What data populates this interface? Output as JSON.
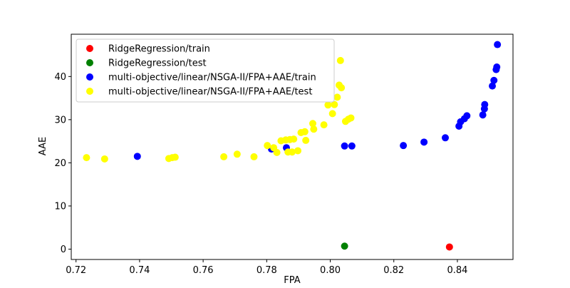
{
  "chart_data": {
    "type": "scatter",
    "title": "",
    "xlabel": "FPA",
    "ylabel": "AAE",
    "xlim": [
      0.7185,
      0.8575
    ],
    "ylim": [
      -2.4,
      49.8
    ],
    "xticks": [
      "0.72",
      "0.74",
      "0.76",
      "0.78",
      "0.80",
      "0.82",
      "0.84"
    ],
    "xtick_values": [
      0.72,
      0.74,
      0.76,
      0.78,
      0.8,
      0.82,
      0.84
    ],
    "yticks": [
      "0",
      "10",
      "20",
      "30",
      "40"
    ],
    "ytick_values": [
      0,
      10,
      20,
      30,
      40
    ],
    "grid": false,
    "legend_position": "upper-left",
    "series": [
      {
        "name": "RidgeRegression/train",
        "color": "#ff0000",
        "points": [
          [
            0.8375,
            0.5
          ]
        ]
      },
      {
        "name": "RidgeRegression/test",
        "color": "#008000",
        "points": [
          [
            0.8045,
            0.7
          ]
        ]
      },
      {
        "name": "multi-objective/linear/NSGA-II/FPA+AAE/train",
        "color": "#0000ff",
        "points": [
          [
            0.7393,
            21.5
          ],
          [
            0.7815,
            23.2
          ],
          [
            0.7862,
            23.5
          ],
          [
            0.8045,
            23.9
          ],
          [
            0.8068,
            23.9
          ],
          [
            0.823,
            24.0
          ],
          [
            0.8295,
            24.8
          ],
          [
            0.8362,
            25.8
          ],
          [
            0.8405,
            28.5
          ],
          [
            0.841,
            29.5
          ],
          [
            0.8422,
            30.2
          ],
          [
            0.843,
            30.9
          ],
          [
            0.848,
            31.1
          ],
          [
            0.8485,
            32.5
          ],
          [
            0.8486,
            33.5
          ],
          [
            0.851,
            37.8
          ],
          [
            0.8515,
            39.1
          ],
          [
            0.8522,
            41.6
          ],
          [
            0.8524,
            42.2
          ],
          [
            0.8526,
            47.4
          ]
        ]
      },
      {
        "name": "multi-objective/linear/NSGA-II/FPA+AAE/test",
        "color": "#ffff00",
        "points": [
          [
            0.7233,
            21.2
          ],
          [
            0.729,
            20.9
          ],
          [
            0.7492,
            21.0
          ],
          [
            0.7503,
            21.2
          ],
          [
            0.7512,
            21.3
          ],
          [
            0.7665,
            21.4
          ],
          [
            0.7707,
            22.0
          ],
          [
            0.776,
            21.4
          ],
          [
            0.7802,
            24.0
          ],
          [
            0.7822,
            23.5
          ],
          [
            0.7832,
            22.4
          ],
          [
            0.7845,
            25.1
          ],
          [
            0.786,
            25.3
          ],
          [
            0.7867,
            22.5
          ],
          [
            0.7873,
            25.4
          ],
          [
            0.788,
            22.5
          ],
          [
            0.7885,
            25.5
          ],
          [
            0.7898,
            22.8
          ],
          [
            0.7908,
            27.0
          ],
          [
            0.792,
            27.2
          ],
          [
            0.7923,
            25.2
          ],
          [
            0.7945,
            29.1
          ],
          [
            0.7948,
            27.8
          ],
          [
            0.798,
            28.8
          ],
          [
            0.7993,
            33.4
          ],
          [
            0.8007,
            31.4
          ],
          [
            0.8013,
            33.5
          ],
          [
            0.8022,
            35.2
          ],
          [
            0.8028,
            38.0
          ],
          [
            0.8035,
            37.4
          ],
          [
            0.8032,
            43.7
          ],
          [
            0.8048,
            29.6
          ],
          [
            0.8057,
            30.1
          ],
          [
            0.8065,
            30.4
          ]
        ]
      }
    ]
  }
}
